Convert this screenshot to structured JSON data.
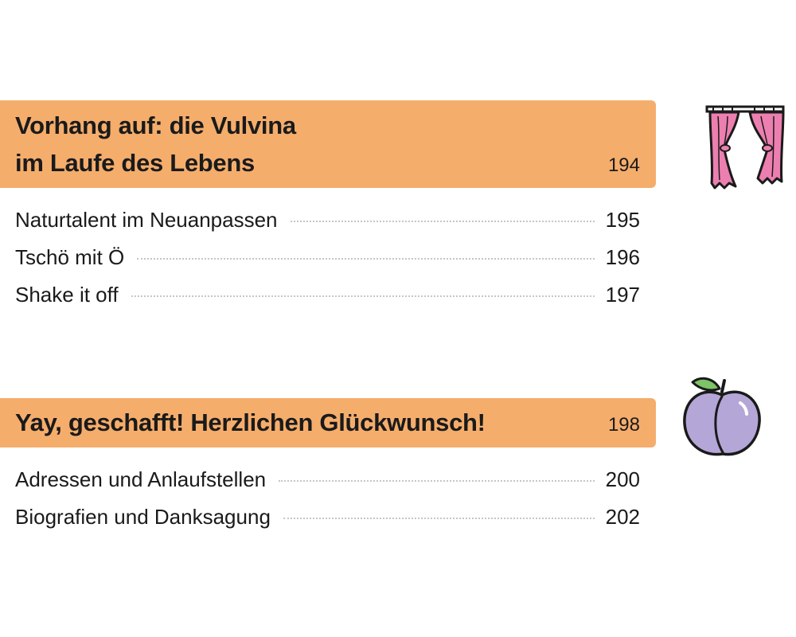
{
  "sections": [
    {
      "title": "Vorhang auf: die Vulvina\nim Laufe des Lebens",
      "page": "194",
      "icon": "curtain-icon",
      "entries": [
        {
          "label": "Naturtalent im Neuanpassen",
          "page": "195"
        },
        {
          "label": "Tschö mit Ö",
          "page": "196"
        },
        {
          "label": "Shake it off",
          "page": "197"
        }
      ]
    },
    {
      "title": "Yay, geschafft! Herzlichen Glückwunsch!",
      "page": "198",
      "icon": "plum-icon",
      "entries": [
        {
          "label": "Adressen und Anlaufstellen",
          "page": "200"
        },
        {
          "label": "Biografien und Danksagung",
          "page": "202"
        }
      ]
    }
  ],
  "colors": {
    "header_background": "#f5ad6c",
    "text": "#1a1a1a",
    "leader_dots": "#c6c6c6",
    "curtain_pink": "#ec7fb0",
    "plum_purple": "#b5a6d8",
    "leaf_green": "#7cc466"
  }
}
